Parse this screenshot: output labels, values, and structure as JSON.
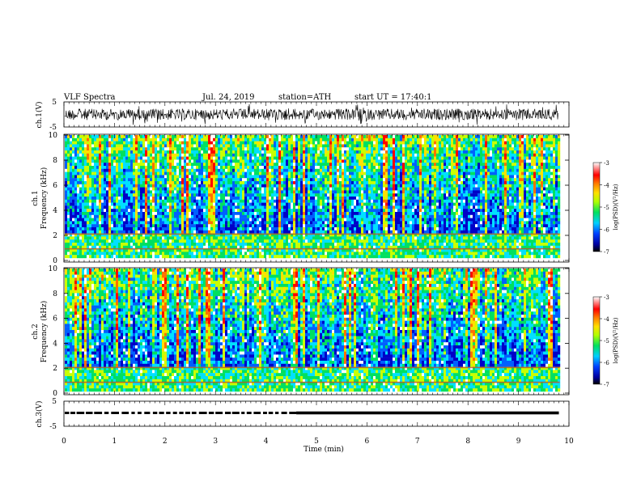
{
  "header": {
    "title": "VLF  Spectra",
    "date": "Jul.  24, 2019",
    "station": "station=ATH",
    "start_ut": "start  UT  =    17:40:1"
  },
  "chart_data": [
    {
      "type": "line",
      "panel": "ch1-waveform",
      "ylabel": "ch.1(V)",
      "ylim": [
        -5,
        5
      ],
      "yticks": [
        "5",
        "-5"
      ],
      "xlim": [
        0,
        10
      ],
      "series": [
        {
          "values": "noise signal between approx -2 and 2 V"
        }
      ]
    },
    {
      "type": "heatmap",
      "panel": "ch1-spectrogram",
      "ylabel_line1": "ch.1",
      "ylabel_line2": "Frequency  (kHz)",
      "ylim": [
        0,
        10
      ],
      "yticks": [
        "0",
        "2",
        "4",
        "6",
        "8",
        "10"
      ],
      "xlim": [
        0,
        9.8
      ],
      "colorbar": {
        "label": "log(PSD)(V²/Hz)",
        "range": [
          -7,
          -3
        ],
        "ticks": [
          "-3",
          "-4",
          "-5",
          "-6",
          "-7"
        ]
      }
    },
    {
      "type": "heatmap",
      "panel": "ch2-spectrogram",
      "ylabel_line1": "ch.2",
      "ylabel_line2": "Frequency  (kHz)",
      "ylim": [
        0,
        10
      ],
      "yticks": [
        "0",
        "2",
        "4",
        "6",
        "8",
        "10"
      ],
      "xlim": [
        0,
        9.8
      ],
      "colorbar": {
        "label": "log(PSD)(V²/Hz)",
        "range": [
          -7,
          -3
        ],
        "ticks": [
          "-3",
          "-4",
          "-5",
          "-6",
          "-7"
        ]
      }
    },
    {
      "type": "line",
      "panel": "ch3-waveform",
      "ylabel": "ch.3(V)",
      "ylim": [
        -5,
        5
      ],
      "yticks": [
        "5",
        "-5"
      ],
      "xlim": [
        0,
        10
      ],
      "series": [
        {
          "values": "flat near -1 V, dashed until ~4.6 min then continuous"
        }
      ]
    }
  ],
  "xaxis": {
    "label": "Time  (min)",
    "ticks": [
      "0",
      "1",
      "2",
      "3",
      "4",
      "5",
      "6",
      "7",
      "8",
      "9",
      "10"
    ]
  },
  "colors": {
    "colormap": [
      "#000000",
      "#0000c8",
      "#0060ff",
      "#00e0ff",
      "#00e060",
      "#c8ff00",
      "#ffe000",
      "#ff7000",
      "#ff0000",
      "#ffffff"
    ]
  }
}
